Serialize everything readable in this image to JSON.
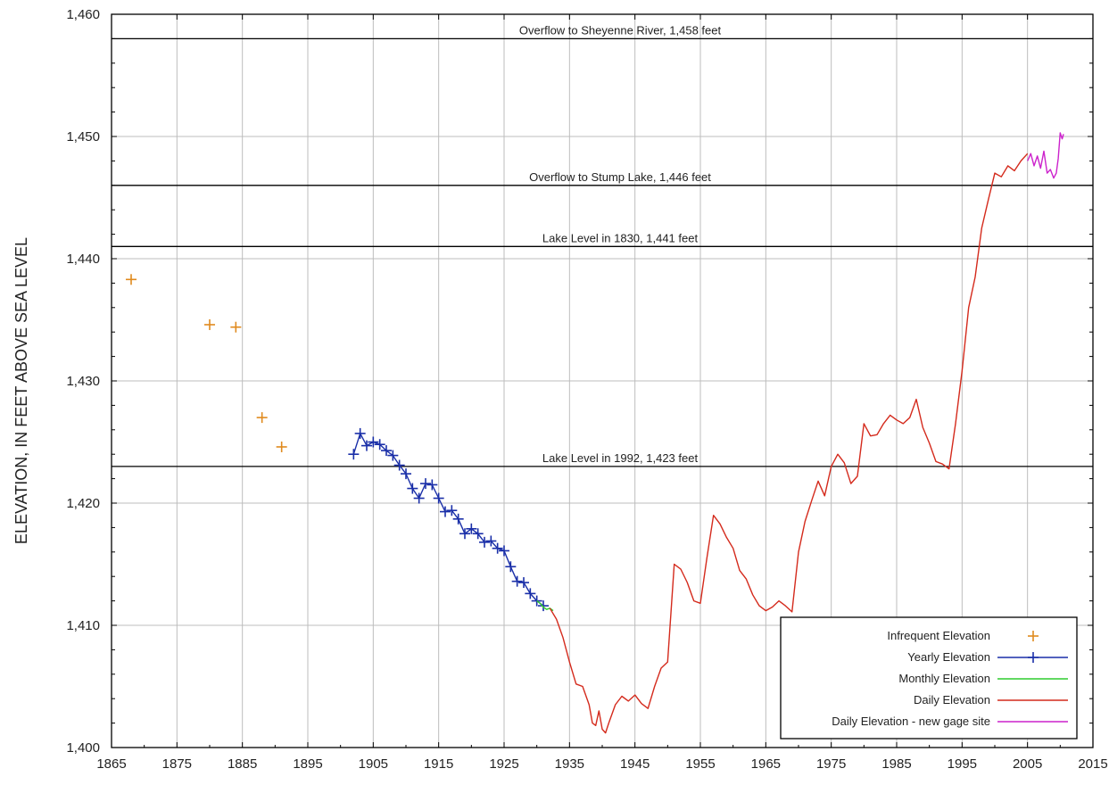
{
  "chart_data": {
    "type": "line",
    "xlabel": "",
    "ylabel": "ELEVATION, IN FEET ABOVE SEA LEVEL",
    "xlim": [
      1865,
      2015
    ],
    "ylim": [
      1400,
      1460
    ],
    "x_ticks": [
      "1865",
      "1875",
      "1885",
      "1895",
      "1905",
      "1915",
      "1925",
      "1935",
      "1945",
      "1955",
      "1965",
      "1975",
      "1985",
      "1995",
      "2005",
      "2015"
    ],
    "y_ticks": [
      "1,400",
      "1,410",
      "1,420",
      "1,430",
      "1,440",
      "1,450",
      "1,460"
    ],
    "grid": true,
    "legend_position": "bottom-right",
    "reference_lines": [
      {
        "y": 1458,
        "label": "Overflow to Sheyenne River, 1,458 feet"
      },
      {
        "y": 1446,
        "label": "Overflow to Stump Lake, 1,446 feet"
      },
      {
        "y": 1441,
        "label": "Lake Level in 1830, 1,441 feet"
      },
      {
        "y": 1423,
        "label": "Lake Level in 1992, 1,423 feet"
      }
    ],
    "series": [
      {
        "name": "Infrequent Elevation",
        "color": "#e08a1e",
        "style": "markers",
        "marker": "plus",
        "x": [
          1868.0,
          1880.0,
          1884.0,
          1888.0,
          1891.0
        ],
        "y": [
          1438.3,
          1434.6,
          1434.4,
          1427.0,
          1424.6
        ]
      },
      {
        "name": "Yearly Elevation",
        "color": "#1a2fa8",
        "style": "line+markers",
        "marker": "plus",
        "x": [
          1902,
          1903,
          1904,
          1905,
          1906,
          1907,
          1908,
          1909,
          1910,
          1911,
          1912,
          1913,
          1914,
          1915,
          1916,
          1917,
          1918,
          1919,
          1920,
          1921,
          1922,
          1923,
          1924,
          1925,
          1926,
          1927,
          1928,
          1929,
          1930,
          1931
        ],
        "y": [
          1424.0,
          1425.7,
          1424.7,
          1425.0,
          1424.8,
          1424.3,
          1423.9,
          1423.1,
          1422.4,
          1421.2,
          1420.4,
          1421.6,
          1421.5,
          1420.4,
          1419.3,
          1419.4,
          1418.7,
          1417.5,
          1417.9,
          1417.5,
          1416.8,
          1416.9,
          1416.3,
          1416.1,
          1414.8,
          1413.6,
          1413.5,
          1412.6,
          1412.0,
          1411.6
        ]
      },
      {
        "name": "Monthly Elevation",
        "color": "#2ecc2e",
        "style": "line",
        "x": [
          1930.0,
          1930.5,
          1931.0,
          1931.5,
          1932.0,
          1932.5
        ],
        "y": [
          1412.0,
          1411.8,
          1411.5,
          1411.3,
          1411.4,
          1411.2
        ]
      },
      {
        "name": "Daily Elevation",
        "color": "#d42a1c",
        "style": "line",
        "x": [
          1932,
          1933,
          1934,
          1935,
          1936,
          1937,
          1938,
          1938.5,
          1939,
          1939.5,
          1940,
          1940.5,
          1941,
          1942,
          1943,
          1944,
          1945,
          1946,
          1947,
          1948,
          1949,
          1950,
          1950.5,
          1951,
          1952,
          1953,
          1954,
          1955,
          1956,
          1957,
          1958,
          1959,
          1960,
          1961,
          1962,
          1963,
          1964,
          1965,
          1966,
          1967,
          1968,
          1969,
          1970,
          1971,
          1972,
          1973,
          1974,
          1975,
          1976,
          1977,
          1978,
          1979,
          1980,
          1981,
          1982,
          1983,
          1984,
          1985,
          1986,
          1987,
          1988,
          1989,
          1990,
          1991,
          1992,
          1993,
          1994,
          1995,
          1996,
          1997,
          1998,
          1999,
          2000,
          2001,
          2002,
          2003,
          2004,
          2005
        ],
        "y": [
          1411.4,
          1410.5,
          1409.0,
          1407.0,
          1405.2,
          1405.0,
          1403.5,
          1402.0,
          1401.8,
          1403.0,
          1401.5,
          1401.2,
          1402.0,
          1403.5,
          1404.2,
          1403.8,
          1404.3,
          1403.6,
          1403.2,
          1405.0,
          1406.5,
          1407.0,
          1411.0,
          1415.0,
          1414.6,
          1413.5,
          1412.0,
          1411.8,
          1415.5,
          1419.0,
          1418.3,
          1417.2,
          1416.3,
          1414.5,
          1413.8,
          1412.5,
          1411.6,
          1411.2,
          1411.5,
          1412.0,
          1411.6,
          1411.1,
          1416.0,
          1418.5,
          1420.2,
          1421.8,
          1420.6,
          1423.0,
          1424.0,
          1423.3,
          1421.6,
          1422.2,
          1426.5,
          1425.5,
          1425.6,
          1426.5,
          1427.2,
          1426.8,
          1426.5,
          1427.0,
          1428.5,
          1426.2,
          1424.9,
          1423.4,
          1423.2,
          1422.8,
          1426.5,
          1430.8,
          1436.0,
          1438.5,
          1442.5,
          1444.8,
          1447.0,
          1446.7,
          1447.6,
          1447.2,
          1448.0,
          1448.6
        ]
      },
      {
        "name": "Daily Elevation - new gage site",
        "color": "#cc22cc",
        "style": "line",
        "x": [
          2005.0,
          2005.5,
          2006.0,
          2006.5,
          2007.0,
          2007.5,
          2008.0,
          2008.5,
          2009.0,
          2009.4,
          2009.7,
          2010.0,
          2010.3,
          2010.5
        ],
        "y": [
          1448.0,
          1448.6,
          1447.6,
          1448.4,
          1447.4,
          1448.8,
          1447.0,
          1447.3,
          1446.6,
          1447.0,
          1448.2,
          1450.3,
          1449.8,
          1450.2
        ]
      }
    ]
  }
}
